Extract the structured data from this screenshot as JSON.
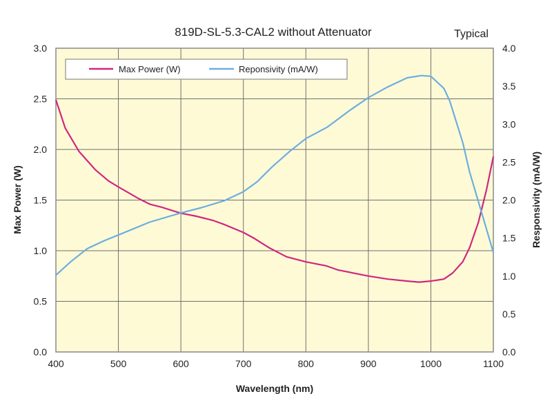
{
  "chart_data": {
    "type": "line",
    "title": "819D-SL-5.3-CAL2 without Attenuator",
    "annotation": "Typical",
    "xlabel": "Wavelength (nm)",
    "ylabel": "Max Power (W)",
    "y2label": "Responsivity  (mA/W)",
    "xlim": [
      400,
      1100
    ],
    "ylim": [
      0,
      3.0
    ],
    "y2lim": [
      0,
      4.0
    ],
    "xticks": [
      "400",
      "500",
      "600",
      "700",
      "800",
      "900",
      "1000",
      "1100"
    ],
    "yticks": [
      "0.0",
      "0.5",
      "1.0",
      "1.5",
      "2.0",
      "2.5",
      "3.0"
    ],
    "y2ticks": [
      "0.0",
      "0.5",
      "1.0",
      "1.5",
      "2.0",
      "2.5",
      "3.0",
      "3.5",
      "4.0"
    ],
    "grid": true,
    "legend_position": "top-left",
    "background_color": "#fffad6",
    "series": [
      {
        "name": "Max Power (W)",
        "axis": "left",
        "color": "#d0267f",
        "x": [
          400,
          415,
          437,
          463,
          484,
          500,
          531,
          550,
          569,
          600,
          625,
          651,
          669,
          700,
          718,
          741,
          769,
          800,
          833,
          851,
          900,
          931,
          962,
          981,
          1000,
          1021,
          1035,
          1051,
          1062,
          1076,
          1089,
          1100
        ],
        "y": [
          2.49,
          2.21,
          1.98,
          1.8,
          1.69,
          1.63,
          1.52,
          1.46,
          1.43,
          1.37,
          1.34,
          1.3,
          1.26,
          1.18,
          1.12,
          1.03,
          0.94,
          0.89,
          0.85,
          0.81,
          0.75,
          0.72,
          0.7,
          0.69,
          0.7,
          0.72,
          0.78,
          0.89,
          1.03,
          1.28,
          1.6,
          1.93
        ]
      },
      {
        "name": "Reponsivity (mA/W)",
        "axis": "right",
        "color": "#6aaee0",
        "x": [
          400,
          424,
          450,
          476,
          500,
          550,
          600,
          633,
          669,
          700,
          722,
          745,
          774,
          800,
          834,
          870,
          900,
          931,
          962,
          985,
          1000,
          1021,
          1030,
          1051,
          1062,
          1076,
          1089,
          1100
        ],
        "y": [
          1.01,
          1.19,
          1.36,
          1.46,
          1.54,
          1.71,
          1.83,
          1.9,
          1.99,
          2.11,
          2.24,
          2.43,
          2.64,
          2.81,
          2.96,
          3.18,
          3.35,
          3.49,
          3.61,
          3.64,
          3.63,
          3.47,
          3.31,
          2.76,
          2.37,
          1.98,
          1.62,
          1.31
        ]
      }
    ]
  }
}
